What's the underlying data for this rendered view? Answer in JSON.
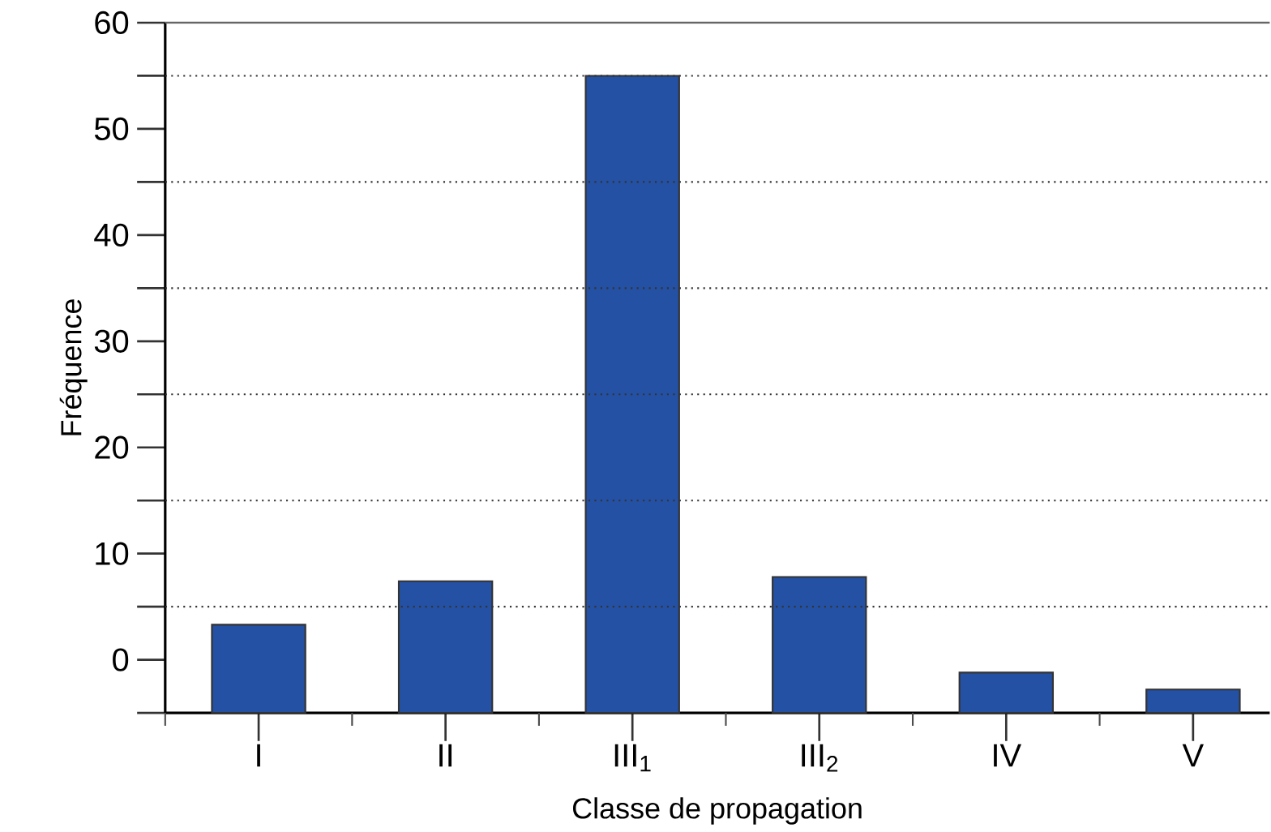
{
  "chart_data": {
    "type": "bar",
    "xlabel": "Classe de propagation",
    "ylabel": "Fréquence",
    "categories": [
      "I",
      "II",
      "III$_{1}$",
      "III$_{2}$",
      "IV",
      "V"
    ],
    "values": [
      8.3,
      12.4,
      60,
      12.8,
      3.8,
      2.2
    ],
    "base": [
      -5,
      -5,
      -5,
      -5,
      -5,
      -5
    ],
    "color": "#2451a3",
    "ylim": [
      -5,
      60
    ],
    "yticks": [
      {
        "value": -5,
        "label": null
      },
      0,
      {
        "value": 5,
        "label": null
      },
      10,
      {
        "value": 15,
        "label": null
      },
      20,
      {
        "value": 25,
        "label": null
      },
      30,
      {
        "value": 35,
        "label": null
      },
      40,
      {
        "value": 45,
        "label": null
      },
      50,
      {
        "value": 55,
        "label": null
      },
      60
    ],
    "ref_lines": [
      {
        "axis": "y",
        "value": 5,
        "line_style": "dotted"
      },
      {
        "axis": "y",
        "value": 15,
        "line_style": "dotted"
      },
      {
        "axis": "y",
        "value": 25,
        "line_style": "dotted"
      },
      {
        "axis": "y",
        "value": 35,
        "line_style": "dotted"
      },
      {
        "axis": "y",
        "value": 45,
        "line_style": "dotted"
      },
      {
        "axis": "y",
        "value": 55,
        "line_style": "dotted"
      }
    ]
  }
}
